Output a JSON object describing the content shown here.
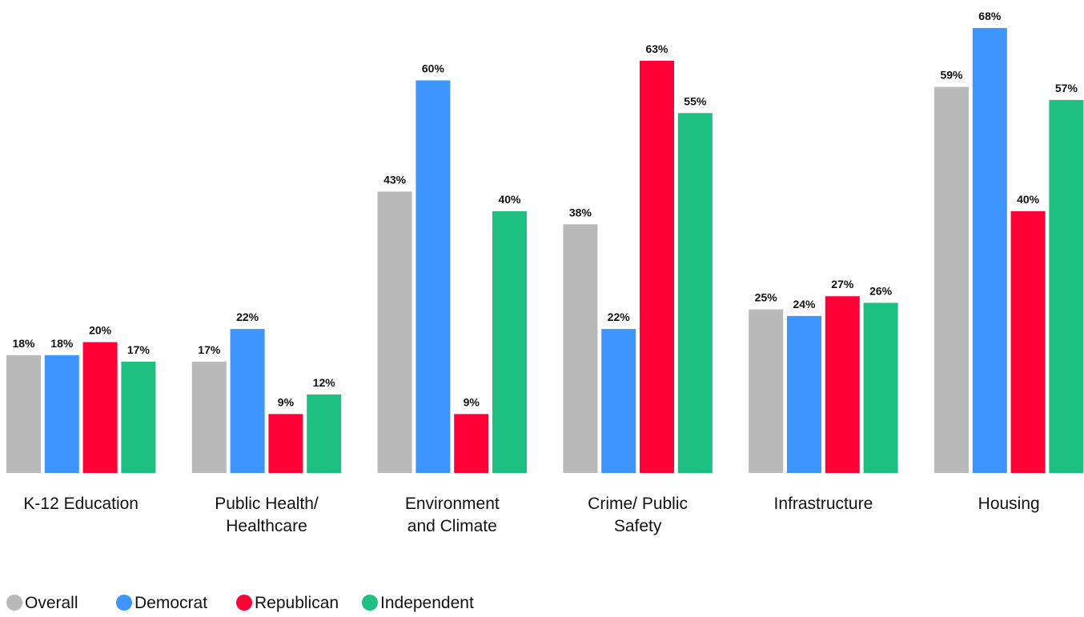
{
  "chart_data": {
    "type": "bar",
    "categories": [
      [
        "K-12 Education"
      ],
      [
        "Public Health/",
        "Healthcare"
      ],
      [
        "Environment",
        "and Climate"
      ],
      [
        "Crime/ Public",
        "Safety"
      ],
      [
        "Infrastructure"
      ],
      [
        "Housing"
      ]
    ],
    "series": [
      {
        "name": "Overall",
        "color": "#b9b9b9",
        "values": [
          18,
          17,
          43,
          38,
          25,
          59
        ]
      },
      {
        "name": "Democrat",
        "color": "#3e95ff",
        "values": [
          18,
          22,
          60,
          22,
          24,
          68
        ]
      },
      {
        "name": "Republican",
        "color": "#ff0036",
        "values": [
          20,
          9,
          9,
          63,
          27,
          40
        ]
      },
      {
        "name": "Independent",
        "color": "#1dbf82",
        "values": [
          17,
          12,
          40,
          55,
          26,
          57
        ]
      }
    ],
    "value_suffix": "%",
    "ylim": [
      0,
      68
    ],
    "grid": false,
    "legend_position": "bottom-left",
    "title": "",
    "xlabel": "",
    "ylabel": ""
  }
}
